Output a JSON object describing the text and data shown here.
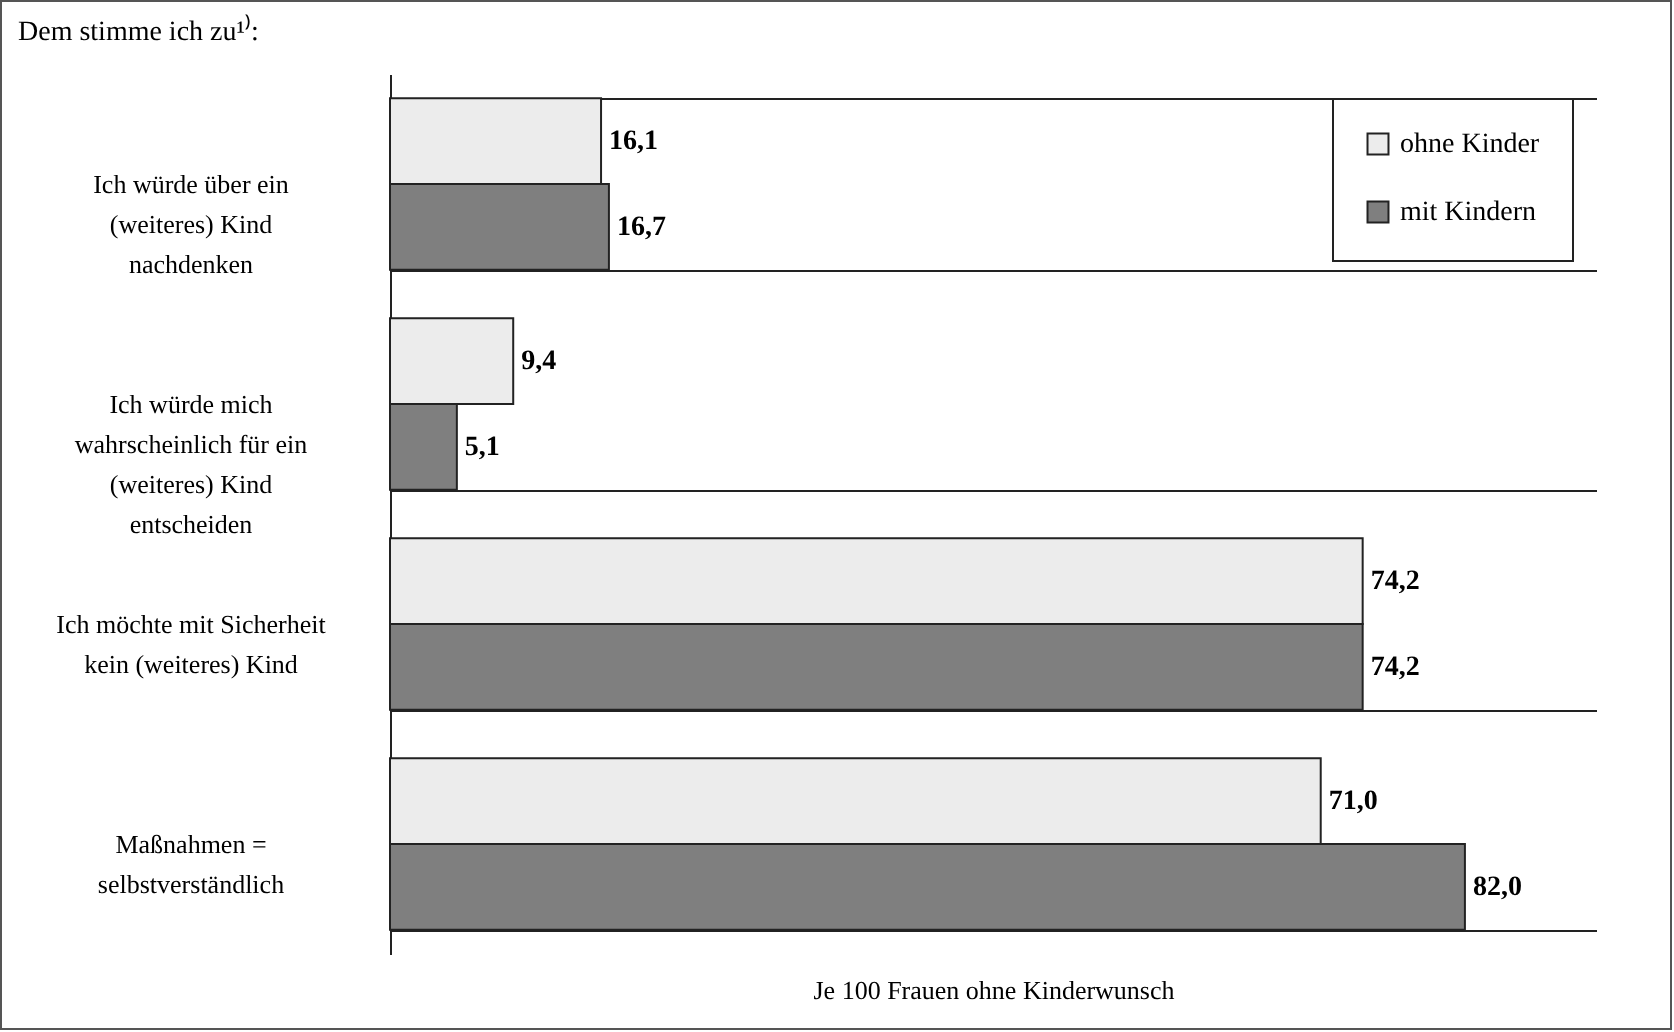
{
  "chart_data": {
    "type": "bar",
    "orientation": "horizontal",
    "title": "Dem stimme ich zu¹⁾:",
    "xlabel": "Je 100 Frauen ohne Kinderwunsch",
    "categories": [
      "Ich würde über ein (weiteres) Kind nachdenken",
      "Ich würde mich wahrscheinlich für ein (weiteres) Kind entscheiden",
      "Ich möchte mit Sicherheit kein (weiteres) Kind",
      "Maßnahmen = selbstverständlich"
    ],
    "series": [
      {
        "name": "ohne Kinder",
        "color": "#ececec",
        "values": [
          16.1,
          9.4,
          74.2,
          71.0
        ],
        "value_labels": [
          "16,1",
          "9,4",
          "74,2",
          "71,0"
        ]
      },
      {
        "name": "mit Kindern",
        "color": "#7f7f7f",
        "values": [
          16.7,
          5.1,
          74.2,
          82.0
        ],
        "value_labels": [
          "16,7",
          "5,1",
          "74,2",
          "82,0"
        ]
      }
    ],
    "tick_labels": "y",
    "grid": "y",
    "legend": "top right"
  }
}
